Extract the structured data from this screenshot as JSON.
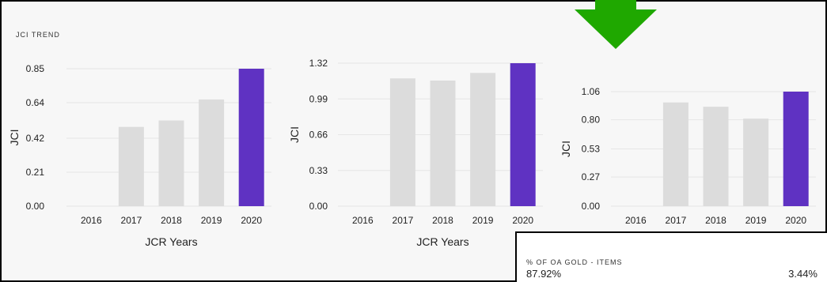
{
  "section": {
    "title": "JCI TREND"
  },
  "colors": {
    "current": "#5f32c2",
    "previous": "#dcdcdc",
    "arrow": "#1fa800"
  },
  "chart_data": [
    {
      "type": "bar",
      "categories": [
        "2016",
        "2017",
        "2018",
        "2019",
        "2020"
      ],
      "values": [
        null,
        0.49,
        0.53,
        0.66,
        0.85
      ],
      "yticks": [
        "0.85",
        "0.64",
        "0.42",
        "0.21",
        "0.00"
      ],
      "ylim": [
        0,
        0.85
      ],
      "xlabel": "JCR Years",
      "ylabel": "JCI"
    },
    {
      "type": "bar",
      "categories": [
        "2016",
        "2017",
        "2018",
        "2019",
        "2020"
      ],
      "values": [
        null,
        1.18,
        1.16,
        1.23,
        1.32
      ],
      "yticks": [
        "1.32",
        "0.99",
        "0.66",
        "0.33",
        "0.00"
      ],
      "ylim": [
        0,
        1.32
      ],
      "xlabel": "JCR Years",
      "ylabel": "JCI"
    },
    {
      "type": "bar",
      "categories": [
        "2016",
        "2017",
        "2018",
        "2019",
        "2020"
      ],
      "values": [
        null,
        0.96,
        0.92,
        0.81,
        1.06
      ],
      "yticks": [
        "1.06",
        "0.80",
        "0.53",
        "0.27",
        "0.00"
      ],
      "ylim": [
        0,
        1.06
      ],
      "xlabel": "",
      "ylabel": "JCI"
    }
  ],
  "oa_panel": {
    "title": "% OF OA GOLD - ITEMS",
    "left_value": "87.92%",
    "right_value": "3.44%"
  }
}
